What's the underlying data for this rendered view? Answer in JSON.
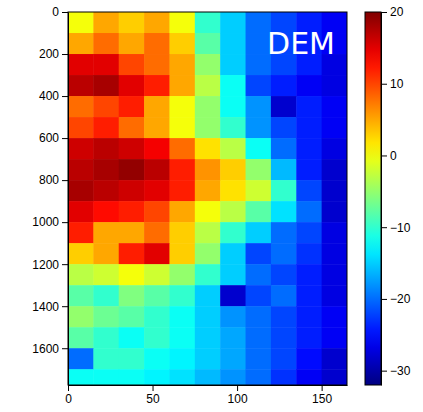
{
  "chart_data": {
    "type": "heatmap",
    "annotation": "DEM",
    "x_bins": [
      0,
      15,
      30,
      45,
      60,
      75,
      90,
      105,
      120,
      135,
      150,
      165
    ],
    "y_bins": [
      0,
      100,
      200,
      300,
      400,
      500,
      600,
      700,
      800,
      900,
      1000,
      1100,
      1200,
      1300,
      1400,
      1500,
      1600,
      1700,
      1775
    ],
    "values": [
      [
        0,
        5,
        3,
        5,
        0,
        -10,
        -15,
        -20,
        -22,
        -24,
        -26
      ],
      [
        5,
        8,
        5,
        8,
        3,
        -8,
        -15,
        -20,
        -22,
        -24,
        -26
      ],
      [
        15,
        15,
        10,
        8,
        5,
        -5,
        -15,
        -20,
        -22,
        -24,
        -27
      ],
      [
        17,
        18,
        15,
        12,
        5,
        -3,
        -12,
        -22,
        -24,
        -26,
        -27
      ],
      [
        8,
        10,
        12,
        5,
        0,
        -5,
        -12,
        -18,
        -28,
        -24,
        -26
      ],
      [
        10,
        12,
        8,
        5,
        0,
        -5,
        -10,
        -18,
        -22,
        -24,
        -26
      ],
      [
        16,
        17,
        16,
        14,
        8,
        2,
        -3,
        -12,
        -20,
        -24,
        -27
      ],
      [
        17,
        18,
        19,
        17,
        12,
        6,
        3,
        -5,
        -16,
        -24,
        -28
      ],
      [
        18,
        17,
        16,
        15,
        12,
        5,
        2,
        -2,
        -10,
        -22,
        -28
      ],
      [
        15,
        13,
        12,
        10,
        5,
        0,
        -3,
        -8,
        -14,
        -20,
        -28
      ],
      [
        12,
        5,
        5,
        8,
        3,
        -3,
        -10,
        -15,
        -20,
        -22,
        -27
      ],
      [
        3,
        5,
        12,
        15,
        3,
        -5,
        -15,
        -22,
        -20,
        -23,
        -27
      ],
      [
        -3,
        -2,
        0,
        -2,
        -5,
        -10,
        -15,
        -20,
        -22,
        -24,
        -27
      ],
      [
        -8,
        -10,
        -6,
        -8,
        -10,
        -15,
        -28,
        -22,
        -20,
        -24,
        -27
      ],
      [
        -5,
        -7,
        -8,
        -10,
        -12,
        -15,
        -18,
        -20,
        -22,
        -24,
        -26
      ],
      [
        -8,
        -10,
        -12,
        -10,
        -12,
        -15,
        -17,
        -20,
        -22,
        -24,
        -26
      ],
      [
        -20,
        -10,
        -10,
        -12,
        -13,
        -15,
        -17,
        -20,
        -22,
        -25,
        -28
      ],
      [
        -12,
        -12,
        -12,
        -13,
        -14,
        -16,
        -18,
        -20,
        -23,
        -26,
        -28
      ]
    ],
    "xlim": [
      0,
      165
    ],
    "ylim": [
      0,
      1775
    ],
    "xticks": [
      0,
      50,
      100,
      150
    ],
    "yticks": [
      0,
      200,
      400,
      600,
      800,
      1000,
      1200,
      1400,
      1600
    ],
    "colorbar": {
      "range": [
        -32,
        20
      ],
      "ticks": [
        {
          "value": -30,
          "label": "−30"
        },
        {
          "value": -20,
          "label": "−20"
        },
        {
          "value": -10,
          "label": "−10"
        },
        0,
        10,
        20
      ]
    }
  }
}
